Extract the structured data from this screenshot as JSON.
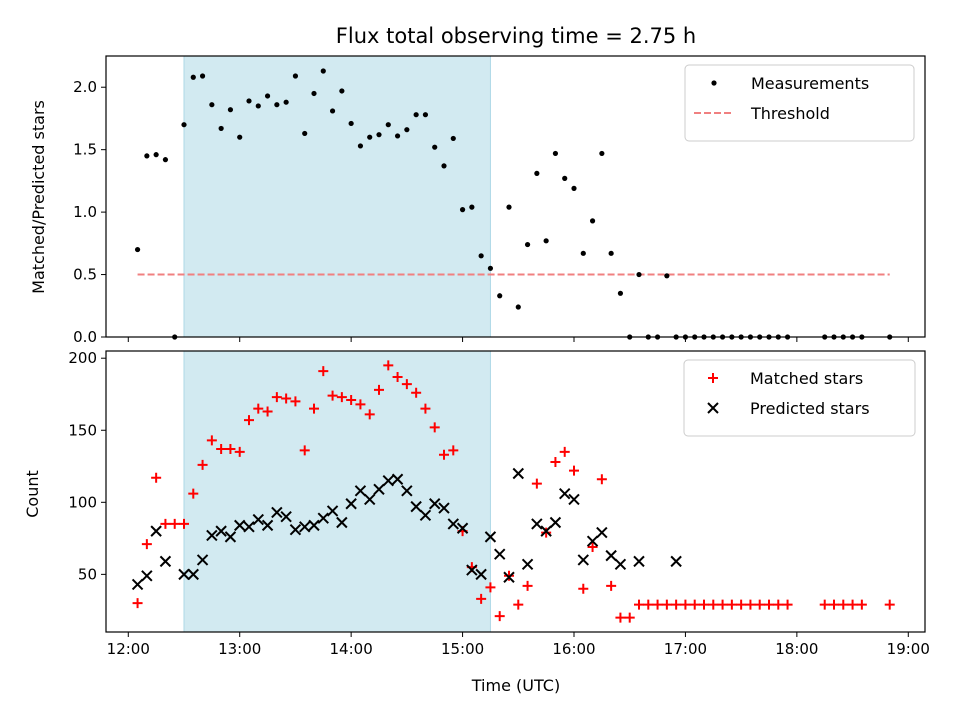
{
  "chart_data": [
    {
      "type": "scatter",
      "title": "Flux total observing time = 2.75 h",
      "ylabel": "Matched/Predicted stars",
      "xlabel": "",
      "xlim": [
        "11:48",
        "19:09"
      ],
      "ylim": [
        0,
        2.25
      ],
      "xticks": [
        "12:00",
        "13:00",
        "14:00",
        "15:00",
        "16:00",
        "17:00",
        "18:00",
        "19:00"
      ],
      "yticks": [
        "0.0",
        "0.5",
        "1.0",
        "1.5",
        "2.0"
      ],
      "shaded_region": {
        "start": "12:30",
        "end": "15:15",
        "color": "#add8e6"
      },
      "legend": {
        "position": "top-right",
        "entries": [
          "Measurements",
          "Threshold"
        ]
      },
      "threshold": {
        "name": "Threshold",
        "value": 0.5,
        "start": "12:05",
        "end": "18:50",
        "color": "#f08080"
      },
      "series": [
        {
          "name": "Measurements",
          "color": "#000000",
          "marker": "dot",
          "x": [
            "12:05",
            "12:10",
            "12:15",
            "12:20",
            "12:25",
            "12:30",
            "12:35",
            "12:40",
            "12:45",
            "12:50",
            "12:55",
            "13:00",
            "13:05",
            "13:10",
            "13:15",
            "13:20",
            "13:25",
            "13:30",
            "13:35",
            "13:40",
            "13:45",
            "13:50",
            "13:55",
            "14:00",
            "14:05",
            "14:10",
            "14:15",
            "14:20",
            "14:25",
            "14:30",
            "14:35",
            "14:40",
            "14:45",
            "14:50",
            "14:55",
            "15:00",
            "15:05",
            "15:10",
            "15:15",
            "15:20",
            "15:25",
            "15:30",
            "15:35",
            "15:40",
            "15:45",
            "15:50",
            "15:55",
            "16:00",
            "16:05",
            "16:10",
            "16:15",
            "16:20",
            "16:25",
            "16:30",
            "16:35",
            "16:40",
            "16:45",
            "16:50",
            "16:55",
            "17:00",
            "17:05",
            "17:10",
            "17:15",
            "17:20",
            "17:25",
            "17:30",
            "17:35",
            "17:40",
            "17:45",
            "17:50",
            "17:55",
            "18:15",
            "18:20",
            "18:25",
            "18:30",
            "18:35",
            "18:50"
          ],
          "y": [
            0.7,
            1.45,
            1.46,
            1.42,
            0.0,
            1.7,
            2.08,
            2.09,
            1.86,
            1.67,
            1.82,
            1.6,
            1.89,
            1.85,
            1.93,
            1.86,
            1.88,
            2.09,
            1.63,
            1.95,
            2.13,
            1.81,
            1.97,
            1.71,
            1.53,
            1.6,
            1.62,
            1.7,
            1.61,
            1.66,
            1.78,
            1.78,
            1.52,
            1.37,
            1.59,
            1.02,
            1.04,
            0.65,
            0.55,
            0.33,
            1.04,
            0.24,
            0.74,
            1.31,
            0.77,
            1.47,
            1.27,
            1.19,
            0.67,
            0.93,
            1.47,
            0.67,
            0.35,
            0.0,
            0.5,
            0.0,
            0.0,
            0.49,
            0.0,
            0.0,
            0.0,
            0.0,
            0.0,
            0.0,
            0.0,
            0.0,
            0.0,
            0.0,
            0.0,
            0.0,
            0.0,
            0.0,
            0.0,
            0.0,
            0.0,
            0.0,
            0.0
          ]
        }
      ]
    },
    {
      "type": "scatter",
      "title": "",
      "ylabel": "Count",
      "xlabel": "Time (UTC)",
      "xlim": [
        "11:48",
        "19:09"
      ],
      "ylim": [
        10,
        205
      ],
      "xticks": [
        "12:00",
        "13:00",
        "14:00",
        "15:00",
        "16:00",
        "17:00",
        "18:00",
        "19:00"
      ],
      "yticks": [
        "50",
        "100",
        "150",
        "200"
      ],
      "shaded_region": {
        "start": "12:30",
        "end": "15:15",
        "color": "#add8e6"
      },
      "legend": {
        "position": "top-right",
        "entries": [
          "Matched stars",
          "Predicted stars"
        ]
      },
      "series": [
        {
          "name": "Matched stars",
          "color": "#ff0000",
          "marker": "plus",
          "x": [
            "12:05",
            "12:10",
            "12:15",
            "12:20",
            "12:25",
            "12:30",
            "12:35",
            "12:40",
            "12:45",
            "12:50",
            "12:55",
            "13:00",
            "13:05",
            "13:10",
            "13:15",
            "13:20",
            "13:25",
            "13:30",
            "13:35",
            "13:40",
            "13:45",
            "13:50",
            "13:55",
            "14:00",
            "14:05",
            "14:10",
            "14:15",
            "14:20",
            "14:25",
            "14:30",
            "14:35",
            "14:40",
            "14:45",
            "14:50",
            "14:55",
            "15:00",
            "15:05",
            "15:10",
            "15:15",
            "15:20",
            "15:25",
            "15:30",
            "15:35",
            "15:40",
            "15:45",
            "15:50",
            "15:55",
            "16:00",
            "16:05",
            "16:10",
            "16:15",
            "16:20",
            "16:25",
            "16:30",
            "16:35",
            "16:40",
            "16:45",
            "16:50",
            "16:55",
            "17:00",
            "17:05",
            "17:10",
            "17:15",
            "17:20",
            "17:25",
            "17:30",
            "17:35",
            "17:40",
            "17:45",
            "17:50",
            "17:55",
            "18:15",
            "18:20",
            "18:25",
            "18:30",
            "18:35",
            "18:50"
          ],
          "y": [
            30,
            71,
            117,
            85,
            85,
            85,
            106,
            126,
            143,
            137,
            137,
            135,
            157,
            165,
            163,
            173,
            172,
            170,
            136,
            165,
            191,
            174,
            173,
            171,
            168,
            161,
            178,
            195,
            187,
            182,
            176,
            165,
            152,
            133,
            136,
            80,
            55,
            33,
            41,
            21,
            49,
            29,
            42,
            113,
            79,
            128,
            135,
            122,
            40,
            69,
            116,
            42,
            20,
            20,
            29,
            29,
            29,
            29,
            29,
            29,
            29,
            29,
            29,
            29,
            29,
            29,
            29,
            29,
            29,
            29,
            29,
            29,
            29,
            29,
            29,
            29,
            29
          ]
        },
        {
          "name": "Predicted stars",
          "color": "#000000",
          "marker": "x",
          "x": [
            "12:05",
            "12:10",
            "12:15",
            "12:20",
            "12:30",
            "12:35",
            "12:40",
            "12:45",
            "12:50",
            "12:55",
            "13:00",
            "13:05",
            "13:10",
            "13:15",
            "13:20",
            "13:25",
            "13:30",
            "13:35",
            "13:40",
            "13:45",
            "13:50",
            "13:55",
            "14:00",
            "14:05",
            "14:10",
            "14:15",
            "14:20",
            "14:25",
            "14:30",
            "14:35",
            "14:40",
            "14:45",
            "14:50",
            "14:55",
            "15:00",
            "15:05",
            "15:10",
            "15:15",
            "15:20",
            "15:25",
            "15:30",
            "15:35",
            "15:40",
            "15:45",
            "15:50",
            "15:55",
            "16:00",
            "16:05",
            "16:10",
            "16:15",
            "16:20",
            "16:25",
            "16:35",
            "16:55"
          ],
          "y": [
            43,
            49,
            80,
            59,
            50,
            50,
            60,
            77,
            80,
            76,
            84,
            83,
            88,
            84,
            93,
            90,
            81,
            83,
            84,
            89,
            94,
            86,
            99,
            108,
            102,
            109,
            115,
            116,
            108,
            97,
            91,
            99,
            96,
            85,
            82,
            53,
            50,
            76,
            64,
            48,
            120,
            57,
            85,
            80,
            86,
            106,
            102,
            60,
            73,
            79,
            63,
            57,
            59,
            59
          ]
        }
      ]
    }
  ]
}
